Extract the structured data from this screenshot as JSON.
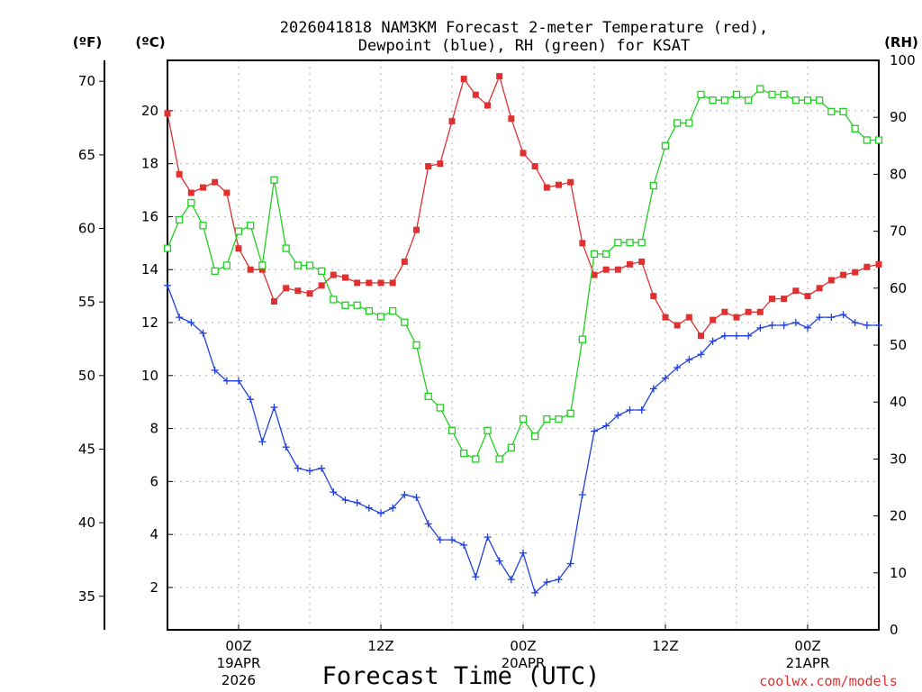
{
  "chart_data": {
    "type": "line",
    "title_line1": "2026041818 NAM3KM Forecast 2-meter Temperature (red),",
    "title_line2": "Dewpoint (blue), RH (green) for KSAT",
    "units": {
      "fahrenheit": "(ºF)",
      "celsius": "(ºC)",
      "rh": "(RH)"
    },
    "xlabel": "Forecast Time (UTC)",
    "credit": "coolwx.com/models",
    "x_range_hours": [
      18,
      78
    ],
    "y_left_c_range": [
      0.4,
      21.9
    ],
    "y_right_rh_range": [
      0,
      100
    ],
    "celsius_ticks": [
      "2",
      "4",
      "6",
      "8",
      "10",
      "12",
      "14",
      "16",
      "18",
      "20"
    ],
    "fahrenheit_ticks": [
      "35",
      "40",
      "45",
      "50",
      "55",
      "60",
      "65",
      "70"
    ],
    "rh_ticks": [
      "0",
      "10",
      "20",
      "30",
      "40",
      "50",
      "60",
      "70",
      "80",
      "90",
      "100"
    ],
    "x_ticks": [
      {
        "hour": 24,
        "label": "00Z",
        "date": "19APR",
        "year": "2026"
      },
      {
        "hour": 36,
        "label": "12Z",
        "date": "",
        "year": ""
      },
      {
        "hour": 48,
        "label": "00Z",
        "date": "20APR",
        "year": ""
      },
      {
        "hour": 60,
        "label": "12Z",
        "date": "",
        "year": ""
      },
      {
        "hour": 72,
        "label": "00Z",
        "date": "21APR",
        "year": ""
      }
    ],
    "x": [
      18,
      19,
      20,
      21,
      22,
      23,
      24,
      25,
      26,
      27,
      28,
      29,
      30,
      31,
      32,
      33,
      34,
      35,
      36,
      37,
      38,
      39,
      40,
      41,
      42,
      43,
      44,
      45,
      46,
      47,
      48,
      49,
      50,
      51,
      52,
      53,
      54,
      55,
      56,
      57,
      58,
      59,
      60,
      61,
      62,
      63,
      64,
      65,
      66,
      67,
      68,
      69,
      70,
      71,
      72,
      73,
      74,
      75,
      76,
      77,
      78
    ],
    "series": [
      {
        "name": "2-meter Temperature",
        "unit": "C",
        "color": "#e03030",
        "marker": "filled-square",
        "values": [
          19.9,
          17.6,
          16.9,
          17.1,
          17.3,
          16.9,
          14.8,
          14.0,
          14.0,
          12.8,
          13.3,
          13.2,
          13.1,
          13.4,
          13.8,
          13.7,
          13.5,
          13.5,
          13.5,
          13.5,
          14.3,
          15.5,
          17.9,
          18.0,
          19.6,
          21.2,
          20.6,
          20.2,
          21.3,
          19.7,
          18.4,
          17.9,
          17.1,
          17.2,
          17.3,
          15.0,
          13.8,
          14.0,
          14.0,
          14.2,
          14.3,
          13.0,
          12.2,
          11.9,
          12.2,
          11.5,
          12.1,
          12.4,
          12.2,
          12.4,
          12.4,
          12.9,
          12.9,
          13.2,
          13.0,
          13.3,
          13.6,
          13.8,
          13.9,
          14.1,
          14.2
        ]
      },
      {
        "name": "Dewpoint",
        "unit": "C",
        "color": "#2040e0",
        "marker": "plus",
        "values": [
          13.4,
          12.2,
          12.0,
          11.6,
          10.2,
          9.8,
          9.8,
          9.1,
          7.5,
          8.8,
          7.3,
          6.5,
          6.4,
          6.5,
          5.6,
          5.3,
          5.2,
          5.0,
          4.8,
          5.0,
          5.5,
          5.4,
          4.4,
          3.8,
          3.8,
          3.6,
          2.4,
          3.9,
          3.0,
          2.3,
          3.3,
          1.8,
          2.2,
          2.3,
          2.9,
          5.5,
          7.9,
          8.1,
          8.5,
          8.7,
          8.7,
          9.5,
          9.9,
          10.3,
          10.6,
          10.8,
          11.3,
          11.5,
          11.5,
          11.5,
          11.8,
          11.9,
          11.9,
          12.0,
          11.8,
          12.2,
          12.2,
          12.3,
          12.0,
          11.9,
          11.9
        ]
      },
      {
        "name": "RH",
        "unit": "%",
        "color": "#20d020",
        "marker": "open-square",
        "values": [
          67,
          72,
          75,
          71,
          63,
          64,
          70,
          71,
          64,
          79,
          67,
          64,
          64,
          63,
          58,
          57,
          57,
          56,
          55,
          56,
          54,
          50,
          41,
          39,
          35,
          31,
          30,
          35,
          30,
          32,
          37,
          34,
          37,
          37,
          38,
          51,
          66,
          66,
          68,
          68,
          68,
          78,
          85,
          89,
          89,
          94,
          93,
          93,
          94,
          93,
          95,
          94,
          94,
          93,
          93,
          93,
          91,
          91,
          88,
          86,
          86
        ]
      }
    ]
  }
}
